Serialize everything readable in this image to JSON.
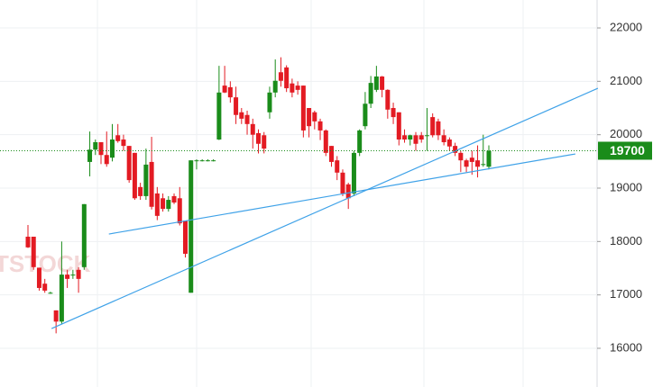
{
  "chart_data": {
    "type": "candlestick",
    "watermark": "TSTOCK",
    "ylim": [
      15275,
      22523
    ],
    "yticks": [
      16000,
      17000,
      18000,
      19000,
      20000,
      21000,
      22000
    ],
    "grid": true,
    "up_color": "#1a8c1a",
    "down_color": "#e31b23",
    "trendline_color": "#3fa2e8",
    "last_price": 19700,
    "last_price_color": "#1a8c1a",
    "open": [
      18090,
      18090,
      17510,
      17210,
      17040,
      16710,
      16500,
      17380,
      17380,
      17470,
      17520,
      19490,
      19720,
      19860,
      19620,
      19570,
      19990,
      19910,
      19790,
      19660,
      19020,
      18850,
      19490,
      18900,
      18810,
      18610,
      18850,
      18810,
      18390,
      17040,
      19520,
      19520,
      19520,
      19520,
      19910,
      20920,
      20890,
      20700,
      20420,
      20370,
      20200,
      20030,
      19990,
      20420,
      20790,
      21170,
      21260,
      20960,
      20920,
      20920,
      20500,
      20420,
      20250,
      20080,
      19790,
      19520,
      19290,
      19070,
      18900,
      19660,
      20160,
      20580,
      20840,
      21090,
      20840,
      20500,
      20420,
      19990,
      19910,
      19990,
      19990,
      19990,
      20330,
      20250,
      19990,
      19910,
      19790,
      19660,
      19520,
      19570,
      19520,
      19450,
      19400
    ],
    "high": [
      18310,
      18090,
      17510,
      17300,
      17060,
      16710,
      18000,
      17470,
      17470,
      17520,
      18700,
      20060,
      19910,
      19860,
      20060,
      20200,
      20200,
      20000,
      19790,
      19660,
      19100,
      19740,
      19960,
      19020,
      18900,
      18850,
      18900,
      19020,
      18390,
      19520,
      19540,
      19540,
      19540,
      19540,
      21290,
      21290,
      21000,
      20900,
      20500,
      20450,
      20300,
      20100,
      20050,
      20900,
      21410,
      21450,
      21300,
      21050,
      21000,
      20920,
      20500,
      20450,
      20300,
      20100,
      19790,
      19600,
      19350,
      19100,
      19700,
      20100,
      20800,
      21100,
      21290,
      21100,
      20850,
      20600,
      20420,
      20100,
      20000,
      20050,
      20050,
      20500,
      20400,
      20300,
      20100,
      19950,
      19850,
      19700,
      19550,
      19700,
      19800,
      20000,
      19800
    ],
    "low": [
      17880,
      17470,
      17080,
      17040,
      17020,
      16280,
      16450,
      17130,
      17300,
      17040,
      17470,
      19220,
      19620,
      19450,
      19400,
      19500,
      19850,
      19700,
      19100,
      18780,
      18780,
      18780,
      18600,
      18400,
      18560,
      18560,
      18700,
      18300,
      17700,
      17040,
      19350,
      19500,
      19500,
      19500,
      19900,
      20780,
      20600,
      20200,
      20200,
      20000,
      19740,
      19650,
      19650,
      20300,
      20700,
      20900,
      20800,
      20700,
      20750,
      19950,
      19950,
      20100,
      19900,
      19600,
      19400,
      19150,
      18850,
      18610,
      18850,
      19600,
      20100,
      20500,
      20800,
      20700,
      20300,
      20200,
      19800,
      19850,
      19800,
      19700,
      19850,
      19700,
      19950,
      19900,
      19800,
      19700,
      19600,
      19300,
      19300,
      19250,
      19200,
      19400,
      19350
    ],
    "close": [
      17890,
      17520,
      17130,
      17080,
      17040,
      16500,
      17380,
      17300,
      17380,
      17300,
      18700,
      19720,
      19860,
      19620,
      19450,
      19910,
      19880,
      19790,
      19150,
      18810,
      18850,
      19440,
      18650,
      18480,
      18610,
      18780,
      18730,
      18340,
      17770,
      19520,
      19520,
      19520,
      19520,
      19520,
      20790,
      20790,
      20700,
      20370,
      20300,
      20200,
      20000,
      19830,
      19740,
      20790,
      21010,
      21010,
      20870,
      20790,
      20840,
      20080,
      20160,
      20250,
      20080,
      19660,
      19490,
      19290,
      18900,
      18810,
      19660,
      20080,
      20580,
      20970,
      21090,
      20840,
      20470,
      20330,
      19910,
      19910,
      19990,
      19830,
      19910,
      19990,
      19990,
      19990,
      19860,
      19780,
      19660,
      19520,
      19400,
      19490,
      19400,
      19450,
      19700
    ],
    "trendlines": [
      {
        "x": [
          4.2,
          101.4
        ],
        "y": [
          16370,
          20870
        ]
      },
      {
        "x": [
          14.4,
          97.4
        ],
        "y": [
          18140,
          19640
        ]
      }
    ]
  }
}
